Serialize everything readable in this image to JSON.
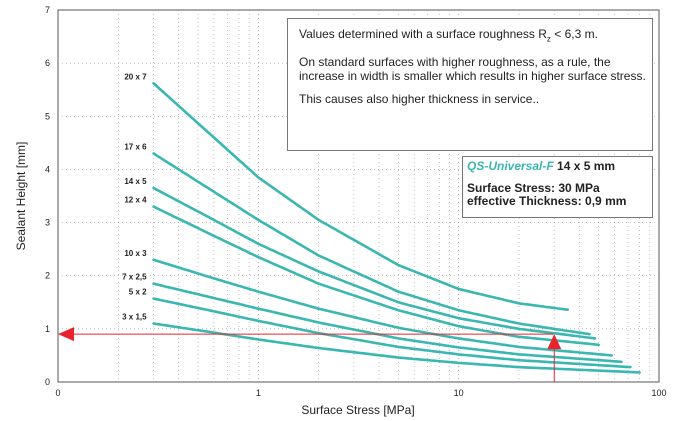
{
  "chart_data": {
    "type": "line",
    "x_scale": "log",
    "xlabel": "Surface Stress [MPa]",
    "ylabel": "Sealant Height [mm]",
    "xlim": [
      0.1,
      100
    ],
    "ylim": [
      0,
      7
    ],
    "x_ticks": [
      "0",
      "1",
      "10",
      "100"
    ],
    "y_ticks": [
      "0",
      "1",
      "2",
      "3",
      "4",
      "5",
      "6",
      "7"
    ],
    "grid": true,
    "line_color": "#3ab7b0",
    "series": [
      {
        "name": "20 x 7",
        "points": [
          [
            0.3,
            5.62
          ],
          [
            0.6,
            4.6
          ],
          [
            1.0,
            3.85
          ],
          [
            2.0,
            3.05
          ],
          [
            5.0,
            2.2
          ],
          [
            10.0,
            1.75
          ],
          [
            20.0,
            1.48
          ],
          [
            35.0,
            1.36
          ]
        ]
      },
      {
        "name": "17 x 6",
        "points": [
          [
            0.3,
            4.3
          ],
          [
            0.6,
            3.58
          ],
          [
            1.0,
            3.05
          ],
          [
            2.0,
            2.38
          ],
          [
            5.0,
            1.7
          ],
          [
            10.0,
            1.35
          ],
          [
            20.0,
            1.1
          ],
          [
            45.0,
            0.9
          ]
        ]
      },
      {
        "name": "14 x 5",
        "points": [
          [
            0.3,
            3.65
          ],
          [
            0.6,
            3.05
          ],
          [
            1.0,
            2.6
          ],
          [
            2.0,
            2.08
          ],
          [
            5.0,
            1.5
          ],
          [
            10.0,
            1.2
          ],
          [
            20.0,
            1.0
          ],
          [
            48.0,
            0.82
          ]
        ]
      },
      {
        "name": "12 x 4",
        "points": [
          [
            0.3,
            3.3
          ],
          [
            0.6,
            2.75
          ],
          [
            1.0,
            2.35
          ],
          [
            2.0,
            1.85
          ],
          [
            5.0,
            1.35
          ],
          [
            10.0,
            1.05
          ],
          [
            20.0,
            0.85
          ],
          [
            50.0,
            0.7
          ]
        ]
      },
      {
        "name": "10 x 3",
        "points": [
          [
            0.3,
            2.3
          ],
          [
            0.6,
            1.95
          ],
          [
            1.0,
            1.7
          ],
          [
            2.0,
            1.38
          ],
          [
            5.0,
            1.02
          ],
          [
            10.0,
            0.82
          ],
          [
            20.0,
            0.66
          ],
          [
            58.0,
            0.5
          ]
        ]
      },
      {
        "name": "7 x 2,5",
        "points": [
          [
            0.3,
            1.85
          ],
          [
            0.6,
            1.58
          ],
          [
            1.0,
            1.38
          ],
          [
            2.0,
            1.12
          ],
          [
            5.0,
            0.82
          ],
          [
            10.0,
            0.65
          ],
          [
            20.0,
            0.52
          ],
          [
            65.0,
            0.38
          ]
        ]
      },
      {
        "name": "5 x 2",
        "points": [
          [
            0.3,
            1.57
          ],
          [
            0.6,
            1.33
          ],
          [
            1.0,
            1.15
          ],
          [
            2.0,
            0.92
          ],
          [
            5.0,
            0.66
          ],
          [
            10.0,
            0.52
          ],
          [
            20.0,
            0.41
          ],
          [
            72.0,
            0.28
          ]
        ]
      },
      {
        "name": "3 x 1,5",
        "points": [
          [
            0.3,
            1.1
          ],
          [
            0.6,
            0.93
          ],
          [
            1.0,
            0.8
          ],
          [
            2.0,
            0.64
          ],
          [
            5.0,
            0.46
          ],
          [
            10.0,
            0.36
          ],
          [
            20.0,
            0.28
          ],
          [
            80.0,
            0.18
          ]
        ]
      }
    ],
    "marker": {
      "x": 30,
      "y": 0.9,
      "color": "#e8232e"
    },
    "annotations": {
      "note_1_before_sub": "Values determined with a surface roughness R",
      "note_1_sub": "z",
      "note_1_after_sub": " < 6,3    m.",
      "note_2": "On standard surfaces with higher roughness, as a rule, the increase in width is smaller which results in  higher surface stress.",
      "note_3": "This causes also higher thickness in service..",
      "product_name": "QS-Universal-F",
      "product_size": " 14 x 5 mm",
      "surface_stress": "Surface Stress: 30 MPa",
      "effective_thickness": "effective  Thickness:  0,9  mm"
    }
  }
}
